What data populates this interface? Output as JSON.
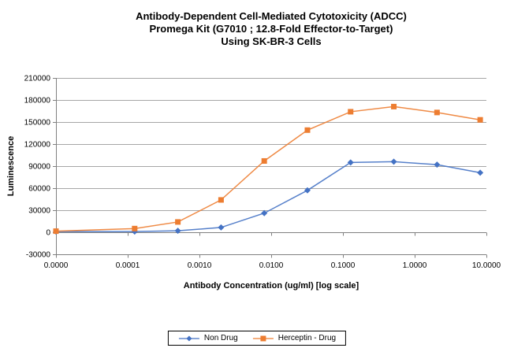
{
  "chart_data": {
    "type": "line",
    "title_lines": [
      "Antibody-Dependent Cell-Mediated Cytotoxicity (ADCC)",
      "Promega Kit (G7010 ; 12.8-Fold Effector-to-Target)",
      "Using SK-BR-3 Cells"
    ],
    "xlabel": "Antibody Concentration (ug/ml) [log scale]",
    "ylabel": "Luminescence",
    "x_scale": "log",
    "x_log_range": [
      -5,
      1
    ],
    "ylim": [
      -30000,
      210000
    ],
    "grid": "horizontal",
    "legend_position": "bottom",
    "y_ticks": [
      {
        "value": 210000,
        "label": "210000"
      },
      {
        "value": 180000,
        "label": "180000"
      },
      {
        "value": 150000,
        "label": "150000"
      },
      {
        "value": 120000,
        "label": "120000"
      },
      {
        "value": 90000,
        "label": "90000"
      },
      {
        "value": 60000,
        "label": "60000"
      },
      {
        "value": 30000,
        "label": "30000"
      },
      {
        "value": 0,
        "label": "0"
      },
      {
        "value": -30000,
        "label": "-30000"
      }
    ],
    "x_ticks": [
      {
        "value": 1e-05,
        "label": "0.0000"
      },
      {
        "value": 0.0001,
        "label": "0.0001"
      },
      {
        "value": 0.001,
        "label": "0.0010"
      },
      {
        "value": 0.01,
        "label": "0.0100"
      },
      {
        "value": 0.1,
        "label": "0.1000"
      },
      {
        "value": 1,
        "label": "1.0000"
      },
      {
        "value": 10,
        "label": "10.0000"
      }
    ],
    "x_values": [
      0,
      0.000125,
      0.0005,
      0.002,
      0.008,
      0.032,
      0.128,
      0.512,
      2.048,
      8.192
    ],
    "series": [
      {
        "name": "Non Drug",
        "color": "#4472C4",
        "marker": "diamond",
        "values": [
          1000,
          1000,
          2000,
          6500,
          26000,
          57000,
          95000,
          96000,
          92000,
          81000
        ]
      },
      {
        "name": "Herceptin - Drug",
        "color": "#ED7D31",
        "marker": "square",
        "values": [
          1500,
          5000,
          14000,
          44000,
          97000,
          139000,
          164000,
          171000,
          163000,
          153000
        ]
      }
    ],
    "colors": {
      "gridline": "#A6A6A6",
      "axis": "#808080",
      "text": "#000000"
    }
  }
}
